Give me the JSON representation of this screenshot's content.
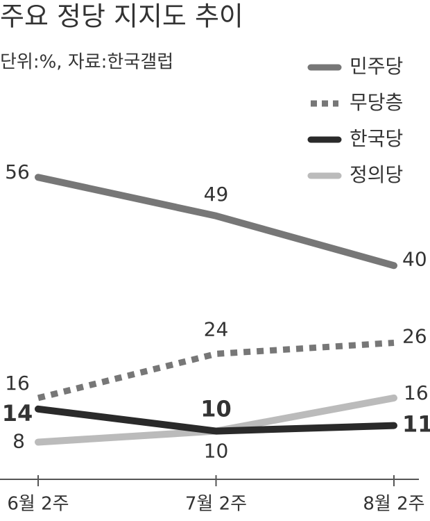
{
  "chart_data": {
    "type": "line",
    "title": "주요 정당 지지도 추이",
    "subtitle": "단위:%, 자료:한국갤럽",
    "categories": [
      "6월 2주",
      "7월 2주",
      "8월 2주"
    ],
    "series": [
      {
        "name": "민주당",
        "color": "#777777",
        "line_style": "solid",
        "values": [
          56,
          49,
          40
        ]
      },
      {
        "name": "무당층",
        "color": "#777777",
        "line_style": "dotted",
        "values": [
          16,
          24,
          26
        ]
      },
      {
        "name": "한국당",
        "color": "#2a2a2a",
        "line_style": "solid",
        "bold_labels": true,
        "values": [
          14,
          10,
          11
        ]
      },
      {
        "name": "정의당",
        "color": "#bbbbbb",
        "line_style": "solid",
        "values": [
          8,
          10,
          16
        ]
      }
    ],
    "ylim": [
      0,
      70
    ],
    "legend": "top-right"
  }
}
